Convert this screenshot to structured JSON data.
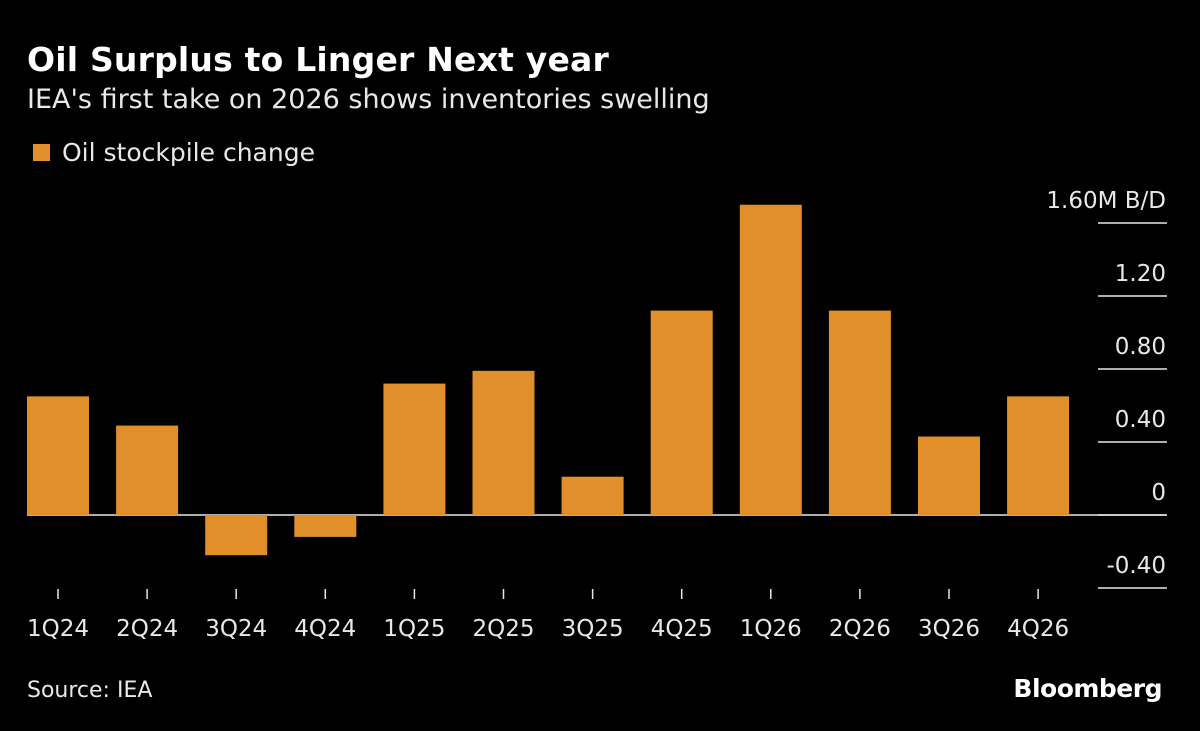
{
  "chart_data": {
    "type": "bar",
    "title": "Oil Surplus to Linger Next year",
    "subtitle": "IEA's first take on 2026 shows inventories swelling",
    "categories": [
      "1Q24",
      "2Q24",
      "3Q24",
      "4Q24",
      "1Q25",
      "2Q25",
      "3Q25",
      "4Q25",
      "1Q26",
      "2Q26",
      "3Q26",
      "4Q26"
    ],
    "series": [
      {
        "name": "Oil stockpile change",
        "color": "#e08f2a",
        "values": [
          0.65,
          0.49,
          -0.22,
          -0.12,
          0.72,
          0.79,
          0.21,
          1.12,
          1.7,
          1.12,
          0.43,
          0.65
        ]
      }
    ],
    "ylabel": "",
    "yunit": "M B/D",
    "ylim": [
      -0.4,
      1.6
    ],
    "yticks": [
      -0.4,
      0,
      0.4,
      0.8,
      1.2,
      1.6
    ],
    "ytick_labels": [
      "-0.40",
      "0",
      "0.40",
      "0.80",
      "1.20",
      "1.60M B/D"
    ],
    "axis_side": "right",
    "legend_position": "top-left",
    "grid": false
  },
  "footer": {
    "source": "Source: IEA",
    "logo": "Bloomberg"
  },
  "colors": {
    "background": "#000000",
    "bar": "#e08f2a",
    "text": "#ffffff"
  }
}
